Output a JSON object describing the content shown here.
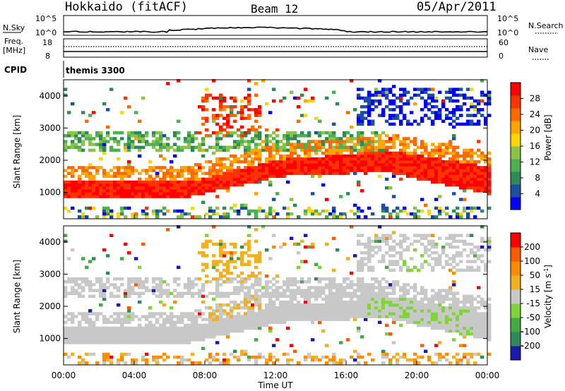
{
  "header": {
    "station": "Hokkaido (fitACF)",
    "beam": "Beam 12",
    "date": "05/Apr/2011"
  },
  "params": {
    "nsky_label": "N.Sky",
    "nsky_ticks": [
      "10^5",
      "10^0"
    ],
    "nsearch_label": "N.Search",
    "freq_label": "Freq.",
    "freq_unit": "[MHz]",
    "freq_ticks": [
      "18",
      "8"
    ],
    "nave_label": "Nave",
    "nave_ticks": [
      "60",
      "0"
    ],
    "cpid_label": "CPID",
    "cpid_value": "themis 3300"
  },
  "colors": {
    "power": [
      "#0000ff",
      "#1d4fa0",
      "#2e8b57",
      "#4caf50",
      "#8bc34a",
      "#ffd700",
      "#ffa500",
      "#ff6a00",
      "#ff3300",
      "#ff0000"
    ],
    "velocity": [
      "#1a1ab0",
      "#2e8b57",
      "#44aa44",
      "#7fd43a",
      "#c8c8c8",
      "#f0b020",
      "#ff8c00",
      "#ff5a00",
      "#ff0000"
    ]
  },
  "chart_data": [
    {
      "type": "heatmap",
      "panel": "power",
      "xlabel": "",
      "ylabel": "Slant Range [km]",
      "ylim": [
        180,
        4500
      ],
      "yticks": [
        "4000",
        "3000",
        "2000",
        "1000"
      ],
      "colorbar_label": "Power [dB]",
      "colorbar_ticks": [
        "28",
        "24",
        "20",
        "16",
        "12",
        "8",
        "4"
      ],
      "clim": [
        0,
        32
      ],
      "bands": [
        {
          "x": [
            0,
            7
          ],
          "range": [
            800,
            1300
          ],
          "level": "red"
        },
        {
          "x": [
            7,
            12
          ],
          "range": [
            1000,
            1900
          ],
          "level": "red"
        },
        {
          "x": [
            12,
            18
          ],
          "range": [
            1500,
            2200
          ],
          "level": "red"
        },
        {
          "x": [
            18,
            24
          ],
          "range": [
            900,
            1800
          ],
          "level": "red"
        },
        {
          "x": [
            0,
            18
          ],
          "range": [
            2200,
            2800
          ],
          "level": "green"
        },
        {
          "x": [
            16,
            24
          ],
          "range": [
            3000,
            4200
          ],
          "level": "blue"
        }
      ]
    },
    {
      "type": "heatmap",
      "panel": "velocity",
      "xlabel": "Time UT",
      "ylabel": "Slant Range [km]",
      "ylim": [
        180,
        4500
      ],
      "yticks": [
        "4000",
        "3000",
        "2000",
        "1000"
      ],
      "xticks": [
        "00:00",
        "04:00",
        "08:00",
        "12:00",
        "16:00",
        "20:00",
        "00:00"
      ],
      "xlim": [
        0,
        24
      ],
      "colorbar_label": "Velocity [m s^-1]",
      "colorbar_ticks": [
        "200",
        "100",
        "50",
        "15",
        "-15",
        "-50",
        "-100",
        "-200"
      ],
      "clim": [
        -250,
        250
      ]
    }
  ]
}
